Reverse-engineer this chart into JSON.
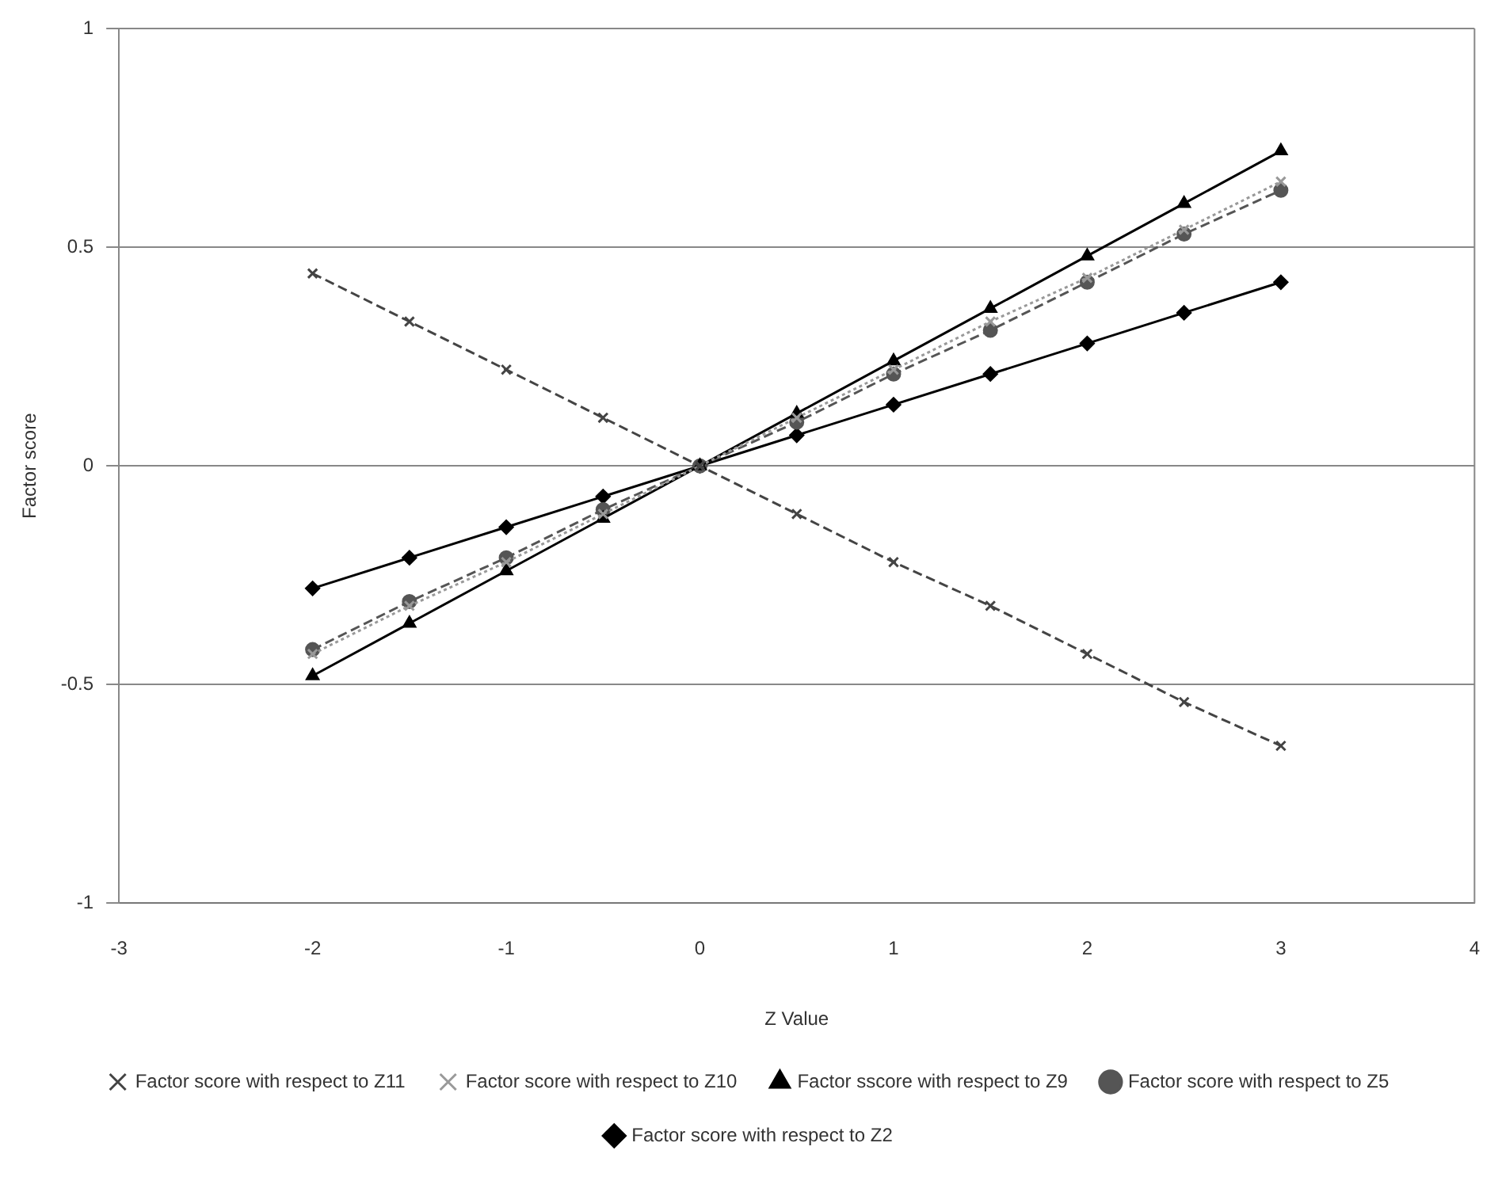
{
  "chart_data": {
    "type": "line",
    "xlabel": "Z Value",
    "ylabel": "Factor score",
    "x": [
      -2,
      -1.5,
      -1,
      -0.5,
      0,
      0.5,
      1,
      1.5,
      2,
      2.5,
      3
    ],
    "xlim": [
      -3,
      4
    ],
    "xticks": [
      -3,
      -2,
      -1,
      0,
      1,
      2,
      3,
      4
    ],
    "ylim": [
      -1,
      1
    ],
    "yticks": [
      -1,
      -0.5,
      0,
      0.5,
      1
    ],
    "grid": "y",
    "legend": "bottom",
    "series": [
      {
        "name": "Factor score with respect to Z2",
        "color": "#000000",
        "marker": "diamond",
        "line_style": "solid",
        "values": [
          -0.28,
          -0.21,
          -0.14,
          -0.07,
          0,
          0.07,
          0.14,
          0.21,
          0.28,
          0.35,
          0.42
        ]
      },
      {
        "name": "Factor score with respect to Z5",
        "color": "#555555",
        "marker": "circle",
        "line_style": "dashed",
        "values": [
          -0.42,
          -0.31,
          -0.21,
          -0.1,
          0,
          0.1,
          0.21,
          0.31,
          0.42,
          0.53,
          0.63
        ]
      },
      {
        "name": "Factor sscore with respect to Z9",
        "color": "#000000",
        "marker": "triangle",
        "line_style": "solid",
        "values": [
          -0.48,
          -0.36,
          -0.24,
          -0.12,
          0,
          0.12,
          0.24,
          0.36,
          0.48,
          0.6,
          0.72
        ]
      },
      {
        "name": "Factor score with respect to Z10",
        "color": "#999999",
        "marker": "cross",
        "line_style": "dotted",
        "values": [
          -0.43,
          -0.32,
          -0.22,
          -0.11,
          0,
          0.11,
          0.22,
          0.33,
          0.43,
          0.54,
          0.65
        ]
      },
      {
        "name": "Factor score with respect to Z11",
        "color": "#444444",
        "marker": "cross",
        "line_style": "dashed",
        "values": [
          0.44,
          0.33,
          0.22,
          0.11,
          0,
          -0.11,
          -0.22,
          -0.32,
          -0.43,
          -0.54,
          -0.64
        ]
      }
    ]
  }
}
